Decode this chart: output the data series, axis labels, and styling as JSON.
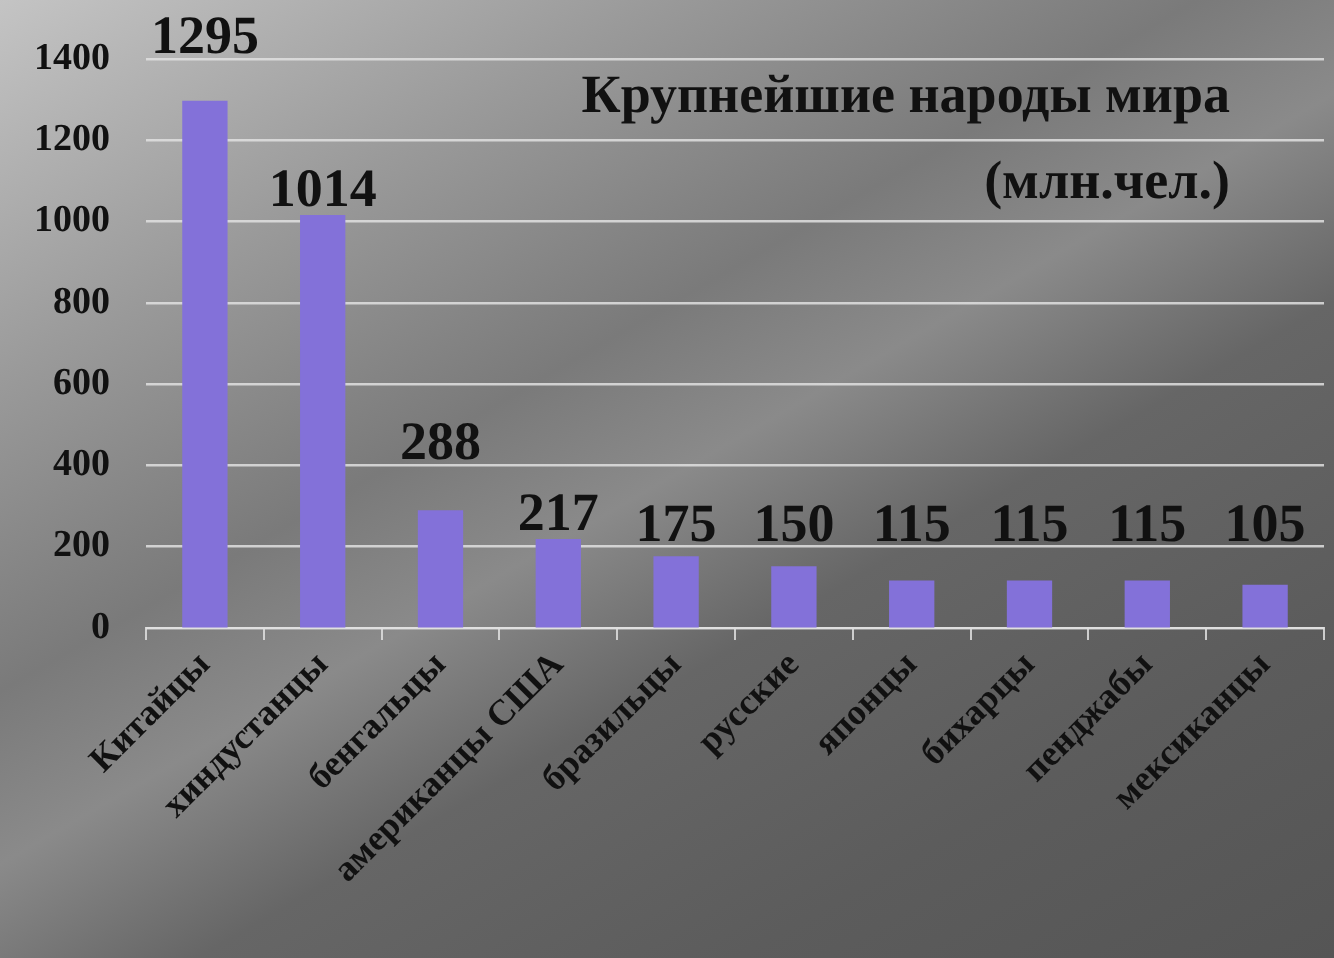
{
  "chart_data": {
    "type": "bar",
    "title": "Крупнейшие народы мира",
    "subtitle": "(млн.чел.)",
    "categories": [
      "Китайцы",
      "хиндустанцы",
      "бенгальцы",
      "американцы США",
      "бразильцы",
      "русские",
      "японцы",
      "бихарцы",
      "пенджабы",
      "мексиканцы"
    ],
    "values": [
      1295,
      1014,
      288,
      217,
      175,
      150,
      115,
      115,
      115,
      105
    ],
    "color": "#8371d9",
    "ylim": [
      0,
      1400
    ],
    "yticks": [
      0,
      200,
      400,
      600,
      800,
      1000,
      1200,
      1400
    ],
    "grid": "y",
    "data_labels": true
  }
}
